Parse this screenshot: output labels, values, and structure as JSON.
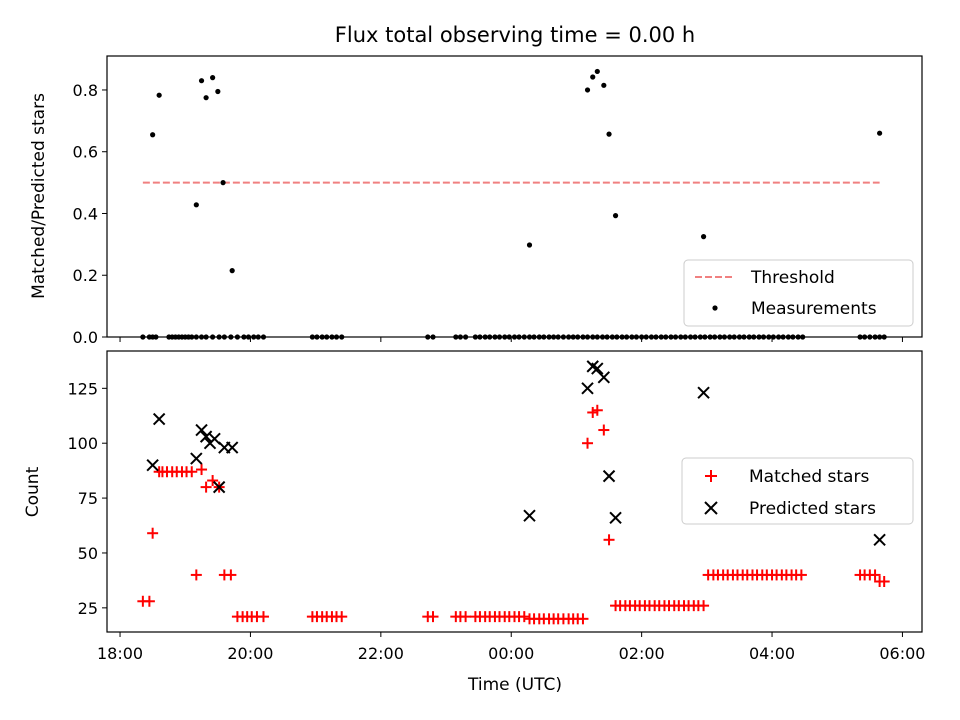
{
  "title": "Flux total observing time = 0.00 h",
  "xaxis": {
    "label": "Time (UTC)",
    "range_hours": [
      17.8,
      30.3
    ],
    "ticks": [
      {
        "h": 18,
        "label": "18:00"
      },
      {
        "h": 20,
        "label": "20:00"
      },
      {
        "h": 22,
        "label": "22:00"
      },
      {
        "h": 24,
        "label": "00:00"
      },
      {
        "h": 26,
        "label": "02:00"
      },
      {
        "h": 28,
        "label": "04:00"
      },
      {
        "h": 30,
        "label": "06:00"
      }
    ]
  },
  "chart_data": [
    {
      "type": "scatter",
      "ylabel": "Matched/Predicted stars",
      "ylim": [
        0,
        0.91
      ],
      "yticks": [
        "0.0",
        "0.2",
        "0.4",
        "0.6",
        "0.8"
      ],
      "ytick_values": [
        0,
        0.2,
        0.4,
        0.6,
        0.8
      ],
      "legend": {
        "position": "lower right",
        "entries": [
          "Threshold",
          "Measurements"
        ]
      },
      "threshold": {
        "name": "Threshold",
        "y": 0.5,
        "x_range": [
          18.35,
          29.65
        ],
        "color": "#f08080"
      },
      "series": [
        {
          "name": "Measurements",
          "color": "#000000",
          "x": [
            18.35,
            18.45,
            18.5,
            18.55,
            18.75,
            18.8,
            18.85,
            18.9,
            18.95,
            19.0,
            19.05,
            19.1,
            19.17,
            19.25,
            19.32,
            19.42,
            19.52,
            19.6,
            19.7,
            19.8,
            19.9,
            19.97,
            20.05,
            20.12,
            20.2,
            20.95,
            21.02,
            21.1,
            21.17,
            21.25,
            21.32,
            21.4,
            22.72,
            22.8,
            23.15,
            23.22,
            23.3,
            23.45,
            23.52,
            23.6,
            23.67,
            23.75,
            23.82,
            23.9,
            23.97,
            24.05,
            24.12,
            24.2,
            24.28,
            24.35,
            24.43,
            24.5,
            24.58,
            24.65,
            24.72,
            24.8,
            24.88,
            24.95,
            25.02,
            25.1,
            25.17,
            25.25,
            25.32,
            25.4,
            25.47,
            25.55,
            25.62,
            25.7,
            25.77,
            25.85,
            25.92,
            26.0,
            26.07,
            26.15,
            26.22,
            26.3,
            26.37,
            26.45,
            26.52,
            26.6,
            26.67,
            26.75,
            26.82,
            26.9,
            26.97,
            27.05,
            27.12,
            27.2,
            27.27,
            27.35,
            27.42,
            27.5,
            27.57,
            27.65,
            27.72,
            27.8,
            27.87,
            27.95,
            28.02,
            28.1,
            28.17,
            28.25,
            28.32,
            28.4,
            28.47,
            29.35,
            29.42,
            29.5,
            29.58,
            29.65,
            29.72,
            18.5,
            18.6,
            19.17,
            19.25,
            19.32,
            19.42,
            19.5,
            19.58,
            19.72,
            24.28,
            25.17,
            25.25,
            25.32,
            25.42,
            25.5,
            25.6,
            26.95,
            29.65
          ],
          "y": [
            0,
            0,
            0,
            0,
            0,
            0,
            0,
            0,
            0,
            0,
            0,
            0,
            0,
            0,
            0,
            0,
            0,
            0,
            0,
            0,
            0,
            0,
            0,
            0,
            0,
            0,
            0,
            0,
            0,
            0,
            0,
            0,
            0,
            0,
            0,
            0,
            0,
            0,
            0,
            0,
            0,
            0,
            0,
            0,
            0,
            0,
            0,
            0,
            0,
            0,
            0,
            0,
            0,
            0,
            0,
            0,
            0,
            0,
            0,
            0,
            0,
            0,
            0,
            0,
            0,
            0,
            0,
            0,
            0,
            0,
            0,
            0,
            0,
            0,
            0,
            0,
            0,
            0,
            0,
            0,
            0,
            0,
            0,
            0,
            0,
            0,
            0,
            0,
            0,
            0,
            0,
            0,
            0,
            0,
            0,
            0,
            0,
            0,
            0,
            0,
            0,
            0,
            0,
            0,
            0,
            0,
            0,
            0,
            0,
            0,
            0,
            0.655,
            0.783,
            0.428,
            0.83,
            0.775,
            0.84,
            0.795,
            0.5,
            0.215,
            0.298,
            0.8,
            0.842,
            0.86,
            0.815,
            0.657,
            0.393,
            0.325,
            0.66
          ]
        }
      ]
    },
    {
      "type": "scatter",
      "ylabel": "Count",
      "xlabel": "Time (UTC)",
      "ylim": [
        14,
        142
      ],
      "yticks": [
        "25",
        "50",
        "75",
        "100",
        "125"
      ],
      "ytick_values": [
        25,
        50,
        75,
        100,
        125
      ],
      "legend": {
        "position": "center right",
        "entries": [
          "Matched stars",
          "Predicted stars"
        ]
      },
      "series": [
        {
          "name": "Matched stars",
          "marker": "plus",
          "color": "#ff0000",
          "x": [
            18.35,
            18.45,
            18.5,
            18.6,
            18.65,
            18.72,
            18.8,
            18.87,
            18.95,
            19.02,
            19.1,
            19.17,
            19.25,
            19.32,
            19.42,
            19.52,
            19.6,
            19.7,
            19.8,
            19.88,
            19.95,
            20.02,
            20.1,
            20.2,
            20.95,
            21.02,
            21.1,
            21.17,
            21.25,
            21.32,
            21.4,
            22.72,
            22.8,
            23.15,
            23.22,
            23.3,
            23.45,
            23.52,
            23.6,
            23.67,
            23.75,
            23.82,
            23.9,
            23.97,
            24.05,
            24.12,
            24.2,
            24.28,
            24.35,
            24.43,
            24.5,
            24.58,
            24.65,
            24.72,
            24.8,
            24.88,
            24.95,
            25.02,
            25.1,
            25.17,
            25.25,
            25.32,
            25.42,
            25.5,
            25.6,
            25.67,
            25.75,
            25.82,
            25.9,
            25.97,
            26.05,
            26.12,
            26.2,
            26.27,
            26.35,
            26.42,
            26.5,
            26.57,
            26.65,
            26.72,
            26.8,
            26.87,
            26.95,
            27.02,
            27.1,
            27.17,
            27.25,
            27.32,
            27.4,
            27.47,
            27.55,
            27.62,
            27.7,
            27.77,
            27.85,
            27.92,
            28.0,
            28.07,
            28.15,
            28.22,
            28.3,
            28.37,
            28.45,
            29.35,
            29.42,
            29.5,
            29.58,
            29.65,
            29.72
          ],
          "y": [
            28,
            28,
            59,
            87,
            87,
            87,
            87,
            87,
            87,
            87,
            87,
            40,
            88,
            80,
            83,
            80,
            40,
            40,
            21,
            21,
            21,
            21,
            21,
            21,
            21,
            21,
            21,
            21,
            21,
            21,
            21,
            21,
            21,
            21,
            21,
            21,
            21,
            21,
            21,
            21,
            21,
            21,
            21,
            21,
            21,
            21,
            21,
            20,
            20,
            20,
            20,
            20,
            20,
            20,
            20,
            20,
            20,
            20,
            20,
            100,
            114,
            115,
            106,
            56,
            26,
            26,
            26,
            26,
            26,
            26,
            26,
            26,
            26,
            26,
            26,
            26,
            26,
            26,
            26,
            26,
            26,
            26,
            26,
            40,
            40,
            40,
            40,
            40,
            40,
            40,
            40,
            40,
            40,
            40,
            40,
            40,
            40,
            40,
            40,
            40,
            40,
            40,
            40,
            40,
            40,
            40,
            40,
            37,
            37
          ]
        },
        {
          "name": "Predicted stars",
          "marker": "x",
          "color": "#000000",
          "x": [
            18.5,
            18.6,
            19.17,
            19.25,
            19.32,
            19.38,
            19.45,
            19.52,
            19.6,
            19.72,
            24.28,
            25.17,
            25.25,
            25.32,
            25.42,
            25.5,
            25.6,
            26.95,
            29.65
          ],
          "y": [
            90,
            111,
            93,
            106,
            103,
            100,
            102,
            80,
            98,
            98,
            67,
            125,
            135,
            134,
            130,
            85,
            66,
            123,
            56
          ]
        }
      ]
    }
  ]
}
